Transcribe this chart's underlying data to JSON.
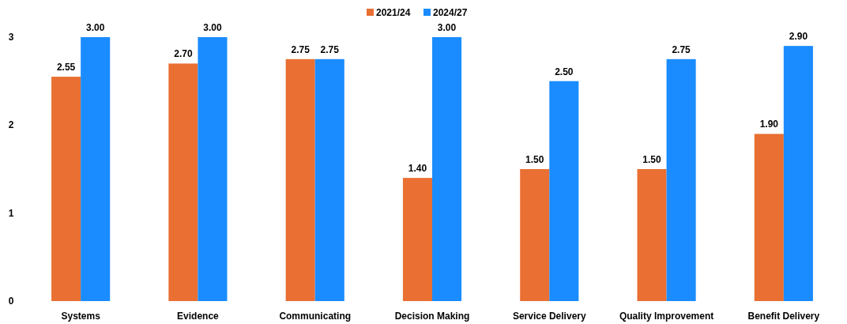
{
  "chart_data": {
    "type": "bar",
    "categories": [
      "Systems",
      "Evidence",
      "Communicating",
      "Decision Making",
      "Service Delivery",
      "Quality Improvement",
      "Benefit Delivery"
    ],
    "series": [
      {
        "name": "2021/24",
        "color": "#e96f32",
        "values": [
          2.55,
          2.7,
          2.75,
          1.4,
          1.5,
          1.5,
          1.9
        ],
        "value_labels": [
          "2.55",
          "2.70",
          "2.75",
          "1.40",
          "1.50",
          "1.50",
          "1.90"
        ]
      },
      {
        "name": "2024/27",
        "color": "#1a8cff",
        "values": [
          3,
          3,
          2.75,
          3,
          2.5,
          2.75,
          2.9
        ],
        "value_labels": [
          "3.00",
          "3.00",
          "2.75",
          "3.00",
          "2.50",
          "2.75",
          "2.90"
        ]
      }
    ],
    "ylim": [
      0,
      3
    ],
    "yticks": [
      0,
      1,
      2,
      3
    ],
    "grid": false,
    "legend": "top"
  }
}
